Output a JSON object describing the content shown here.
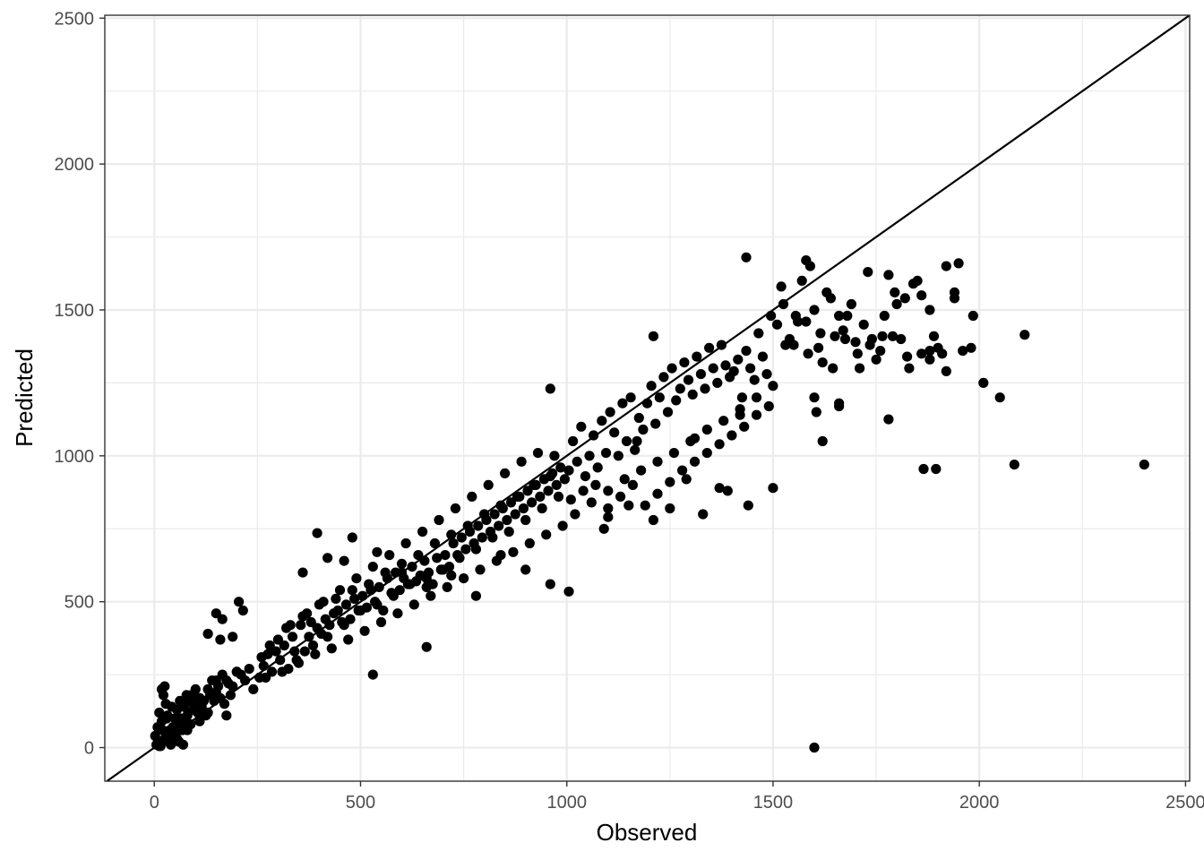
{
  "chart_data": {
    "type": "scatter",
    "title": "",
    "xlabel": "Observed",
    "ylabel": "Predicted",
    "xlim": [
      -120,
      2510
    ],
    "ylim": [
      -115,
      2510
    ],
    "x_ticks": [
      0,
      500,
      1000,
      1500,
      2000,
      2500
    ],
    "y_ticks": [
      0,
      500,
      1000,
      1500,
      2000,
      2500
    ],
    "x_tick_labels": [
      "0",
      "500",
      "1000",
      "1500",
      "2000",
      "2500"
    ],
    "y_tick_labels": [
      "0",
      "500",
      "1000",
      "1500",
      "2000",
      "2500"
    ],
    "grid": true,
    "reference_line": {
      "type": "identity",
      "slope": 1,
      "intercept": 0
    },
    "point_color": "#000000",
    "line_color": "#000000",
    "grid_color": "#ebebeb",
    "series": [
      {
        "x": [
          2,
          5,
          8,
          10,
          12,
          15,
          18,
          20,
          22,
          25,
          28,
          30,
          32,
          35,
          38,
          40,
          42,
          45,
          48,
          50,
          52,
          55,
          58,
          60,
          62,
          65,
          68,
          70,
          72,
          75,
          78,
          80,
          82,
          85,
          88,
          90,
          95,
          100,
          105,
          110,
          115,
          120,
          125,
          130,
          135,
          140,
          145,
          150,
          155,
          160,
          165,
          170,
          175,
          180,
          185,
          190,
          200,
          210,
          220,
          230,
          12,
          18,
          25,
          30,
          40,
          55,
          65,
          80,
          95,
          110,
          130,
          150,
          175,
          200,
          150,
          165,
          130,
          190,
          205,
          215,
          240,
          255,
          265,
          275,
          285,
          295,
          305,
          315,
          325,
          335,
          345,
          355,
          365,
          375,
          385,
          395,
          405,
          415,
          425,
          435,
          445,
          455,
          465,
          475,
          485,
          495,
          505,
          515,
          525,
          535,
          545,
          555,
          565,
          575,
          585,
          595,
          605,
          615,
          625,
          635,
          645,
          655,
          665,
          675,
          685,
          695,
          705,
          715,
          725,
          735,
          745,
          755,
          765,
          775,
          785,
          795,
          805,
          815,
          825,
          835,
          845,
          855,
          865,
          875,
          885,
          895,
          905,
          915,
          925,
          935,
          945,
          955,
          965,
          975,
          985,
          995,
          260,
          280,
          300,
          320,
          340,
          360,
          380,
          400,
          420,
          440,
          460,
          480,
          500,
          520,
          540,
          560,
          580,
          600,
          620,
          640,
          660,
          680,
          700,
          720,
          740,
          760,
          780,
          800,
          820,
          840,
          860,
          880,
          900,
          920,
          940,
          960,
          980,
          270,
          310,
          350,
          390,
          430,
          470,
          510,
          550,
          590,
          630,
          670,
          710,
          750,
          790,
          830,
          870,
          910,
          950,
          990,
          330,
          370,
          410,
          450,
          490,
          530,
          570,
          610,
          650,
          690,
          730,
          770,
          810,
          850,
          890,
          930,
          970,
          360,
          420,
          480,
          540,
          600,
          660,
          720,
          780,
          840,
          900,
          960,
          1005,
          1015,
          1025,
          1035,
          1045,
          1055,
          1065,
          1075,
          1085,
          1095,
          1105,
          1115,
          1125,
          1135,
          1145,
          1155,
          1165,
          1175,
          1185,
          1195,
          1205,
          1215,
          1225,
          1235,
          1245,
          1255,
          1265,
          1275,
          1285,
          1295,
          1305,
          1315,
          1325,
          1335,
          1345,
          1355,
          1365,
          1375,
          1385,
          1395,
          1405,
          1415,
          1425,
          1435,
          1445,
          1455,
          1465,
          1475,
          1485,
          1495,
          1010,
          1040,
          1070,
          1100,
          1130,
          1160,
          1190,
          1220,
          1250,
          1280,
          1310,
          1340,
          1370,
          1400,
          1430,
          1460,
          1490,
          1020,
          1060,
          1100,
          1140,
          1180,
          1220,
          1260,
          1300,
          1340,
          1380,
          1420,
          1460,
          1500,
          1510,
          1525,
          1540,
          1555,
          1570,
          1585,
          1600,
          1615,
          1630,
          1645,
          1660,
          1675,
          1690,
          1705,
          1720,
          1735,
          1750,
          1765,
          1780,
          1795,
          1810,
          1825,
          1840,
          1860,
          1880,
          1900,
          1920,
          1940,
          1960,
          1980,
          1520,
          1550,
          1580,
          1610,
          1640,
          1670,
          1700,
          1730,
          1760,
          1790,
          1820,
          1850,
          1880,
          1910,
          1940,
          1530,
          1560,
          1590,
          1620,
          1650,
          1680,
          1710,
          1740,
          1770,
          1800,
          1830,
          1860,
          1890,
          1920,
          1950,
          960,
          1170,
          395,
          460,
          160,
          530,
          660,
          1005,
          1210,
          1330,
          1390,
          1440,
          1500,
          1600,
          1620,
          1660,
          1780,
          1865,
          1895,
          2010,
          2050,
          2085,
          2110,
          2400,
          1435,
          1580,
          1600,
          1660,
          1880,
          1985,
          1605,
          1370,
          1420,
          1310,
          1210,
          1090,
          1290,
          1100,
          1250,
          1150
        ],
        "y": [
          40,
          10,
          70,
          20,
          120,
          5,
          90,
          60,
          180,
          30,
          150,
          40,
          110,
          20,
          60,
          10,
          140,
          70,
          30,
          100,
          50,
          130,
          80,
          20,
          160,
          100,
          60,
          10,
          140,
          90,
          180,
          60,
          120,
          160,
          80,
          180,
          130,
          200,
          120,
          170,
          140,
          160,
          110,
          200,
          180,
          230,
          160,
          190,
          210,
          170,
          250,
          150,
          230,
          220,
          180,
          210,
          260,
          250,
          230,
          270,
          5,
          200,
          210,
          100,
          50,
          30,
          60,
          110,
          150,
          90,
          120,
          230,
          110,
          260,
          460,
          440,
          390,
          380,
          500,
          470,
          200,
          240,
          280,
          320,
          260,
          330,
          300,
          350,
          270,
          380,
          300,
          420,
          330,
          380,
          350,
          410,
          390,
          440,
          420,
          460,
          470,
          430,
          490,
          440,
          510,
          470,
          520,
          480,
          540,
          500,
          550,
          470,
          580,
          530,
          600,
          540,
          580,
          560,
          620,
          570,
          590,
          640,
          600,
          560,
          650,
          610,
          660,
          620,
          700,
          660,
          720,
          680,
          740,
          700,
          760,
          720,
          780,
          740,
          800,
          760,
          820,
          780,
          840,
          800,
          860,
          820,
          880,
          840,
          900,
          860,
          920,
          880,
          940,
          900,
          960,
          920,
          310,
          350,
          370,
          410,
          330,
          450,
          430,
          490,
          380,
          510,
          420,
          540,
          470,
          560,
          490,
          600,
          520,
          630,
          560,
          660,
          580,
          700,
          610,
          730,
          650,
          760,
          680,
          800,
          720,
          830,
          740,
          860,
          780,
          900,
          820,
          930,
          860,
          240,
          260,
          290,
          320,
          340,
          370,
          400,
          430,
          460,
          490,
          520,
          550,
          580,
          610,
          640,
          670,
          700,
          730,
          760,
          420,
          460,
          500,
          540,
          580,
          620,
          660,
          700,
          740,
          780,
          820,
          860,
          900,
          940,
          980,
          1010,
          1000,
          600,
          650,
          720,
          670,
          600,
          550,
          590,
          520,
          660,
          610,
          560,
          950,
          1050,
          980,
          1100,
          930,
          1000,
          1070,
          960,
          1120,
          1010,
          1150,
          1080,
          1000,
          1180,
          1050,
          1200,
          1020,
          1130,
          1090,
          1180,
          1240,
          1110,
          1200,
          1270,
          1150,
          1300,
          1190,
          1230,
          1320,
          1260,
          1210,
          1340,
          1280,
          1230,
          1370,
          1300,
          1250,
          1380,
          1310,
          1270,
          1290,
          1330,
          1200,
          1360,
          1300,
          1260,
          1420,
          1340,
          1280,
          1480,
          850,
          880,
          900,
          820,
          860,
          900,
          830,
          870,
          910,
          950,
          980,
          1010,
          1040,
          1070,
          1100,
          1140,
          1170,
          800,
          840,
          880,
          920,
          950,
          980,
          1010,
          1050,
          1090,
          1120,
          1160,
          1200,
          1240,
          1450,
          1520,
          1400,
          1480,
          1600,
          1350,
          1500,
          1420,
          1560,
          1300,
          1480,
          1400,
          1520,
          1350,
          1450,
          1380,
          1330,
          1410,
          1620,
          1560,
          1400,
          1340,
          1590,
          1550,
          1500,
          1370,
          1290,
          1560,
          1360,
          1370,
          1580,
          1380,
          1460,
          1370,
          1540,
          1430,
          1390,
          1630,
          1360,
          1410,
          1540,
          1600,
          1360,
          1350,
          1540,
          1380,
          1460,
          1650,
          1320,
          1410,
          1480,
          1300,
          1400,
          1480,
          1520,
          1300,
          1350,
          1410,
          1650,
          1660,
          1230,
          1050,
          735,
          640,
          370,
          250,
          345,
          535,
          1410,
          800,
          880,
          830,
          890,
          0,
          1050,
          1170,
          1125,
          955,
          955,
          1250,
          1200,
          970,
          1415,
          970,
          1680,
          1670,
          1200,
          1180,
          1330,
          1480,
          1150,
          890,
          1140,
          1060,
          780,
          750,
          920,
          790,
          820,
          830
        ]
      }
    ]
  }
}
